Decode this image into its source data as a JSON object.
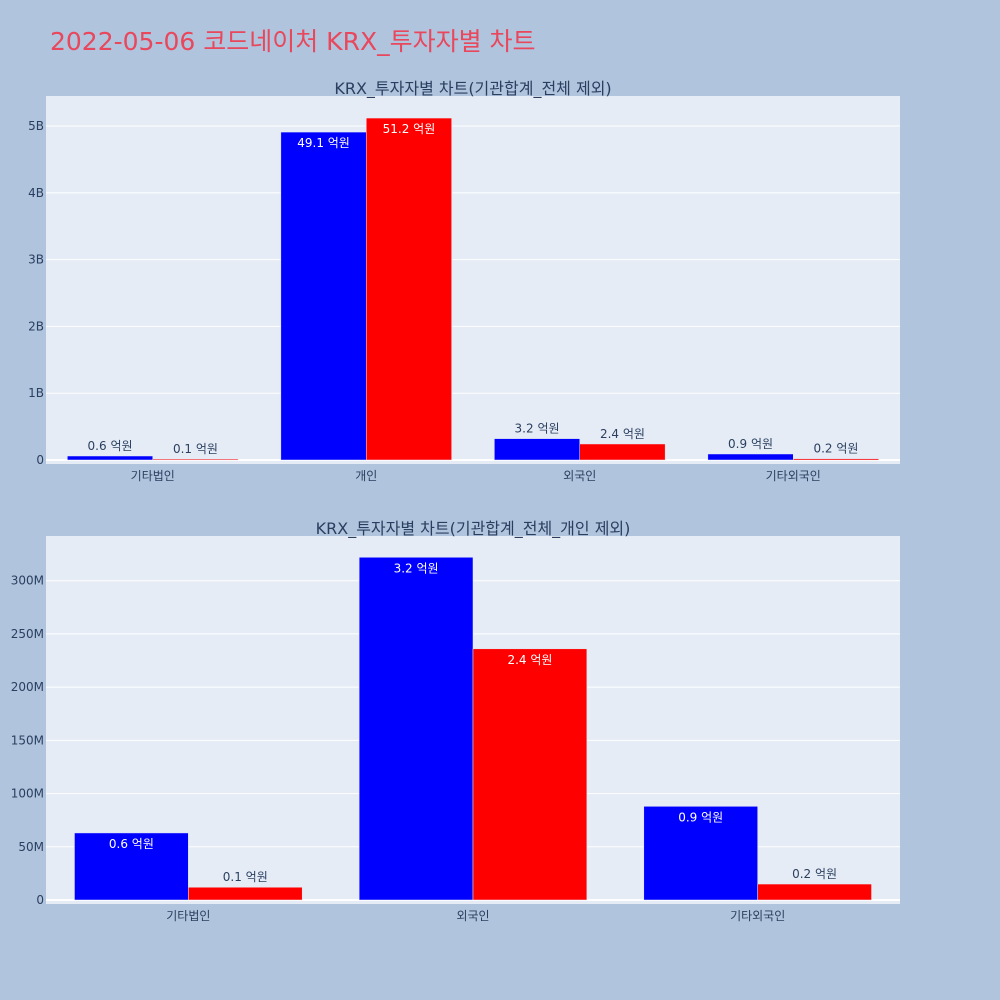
{
  "title": "2022-05-06 코드네이처 KRX_투자자별 차트",
  "colors": {
    "series1": "#0000ff",
    "series2": "#ff0000",
    "plot_bg": "#e5ecf6",
    "page_bg": "#b0c4de",
    "title": "#e8475c"
  },
  "chart_data": [
    {
      "type": "bar",
      "title": "KRX_투자자별 차트(기관합계_전체 제외)",
      "categories": [
        "기타법인",
        "개인",
        "외국인",
        "기타외국인"
      ],
      "series": [
        {
          "color": "#0000ff",
          "values": [
            60000000,
            4910000000,
            320000000,
            90000000
          ],
          "labels": [
            "0.6 억원",
            "49.1 억원",
            "3.2 억원",
            "0.9 억원"
          ]
        },
        {
          "color": "#ff0000",
          "values": [
            10000000,
            5120000000,
            240000000,
            20000000
          ],
          "labels": [
            "0.1 억원",
            "51.2 억원",
            "2.4 억원",
            "0.2 억원"
          ]
        }
      ],
      "ylim": [
        0,
        5450000000
      ],
      "yticks": [
        0,
        1000000000,
        2000000000,
        3000000000,
        4000000000,
        5000000000
      ],
      "yticklabels": [
        "0",
        "1B",
        "2B",
        "3B",
        "4B",
        "5B"
      ],
      "grid": true
    },
    {
      "type": "bar",
      "title": "KRX_투자자별 차트(기관합계_전체_개인 제외)",
      "categories": [
        "기타법인",
        "외국인",
        "기타외국인"
      ],
      "series": [
        {
          "color": "#0000ff",
          "values": [
            63000000,
            322000000,
            88000000
          ],
          "labels": [
            "0.6 억원",
            "3.2 억원",
            "0.9 억원"
          ]
        },
        {
          "color": "#ff0000",
          "values": [
            12000000,
            236000000,
            15000000
          ],
          "labels": [
            "0.1 억원",
            "2.4 억원",
            "0.2 억원"
          ]
        }
      ],
      "ylim": [
        0,
        342000000
      ],
      "yticks": [
        0,
        50000000,
        100000000,
        150000000,
        200000000,
        250000000,
        300000000
      ],
      "yticklabels": [
        "0",
        "50M",
        "100M",
        "150M",
        "200M",
        "250M",
        "300M"
      ],
      "grid": true
    }
  ]
}
